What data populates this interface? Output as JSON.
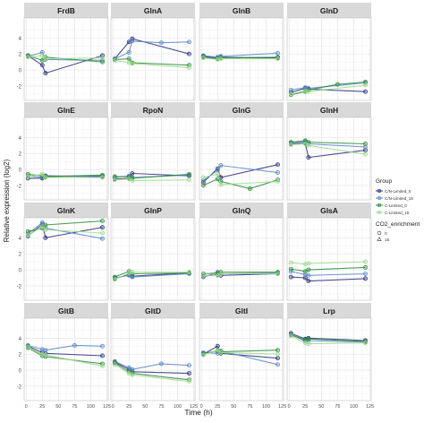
{
  "chart_data": {
    "type": "line",
    "xlabel": "Time (h)",
    "ylabel": "Relative expression (log2)",
    "x_ticks": [
      0,
      25,
      50,
      75,
      100,
      125
    ],
    "y_ticks": [
      -2,
      0,
      2,
      4
    ],
    "ylim": [
      -3.8,
      6.5
    ],
    "grid": true,
    "legend_position": "right",
    "legend": {
      "group_title": "Group",
      "groups": [
        {
          "name": "C/N-Limited_0",
          "color": "#2b2f7e"
        },
        {
          "name": "C/N-Limited_15",
          "color": "#5b86c5"
        },
        {
          "name": "C-Limited_0",
          "color": "#2e8b3d"
        },
        {
          "name": "C-Limited_15",
          "color": "#9bdc8a"
        }
      ],
      "shape_title": "CO2_enrichment",
      "shapes": [
        "0",
        "15"
      ]
    },
    "facets": [
      {
        "title": "FrdB",
        "series": [
          {
            "group": "C/N-Limited_0",
            "x": [
              3,
              25,
              30,
              118
            ],
            "y": [
              1.8,
              0.6,
              -0.4,
              1.8
            ]
          },
          {
            "group": "C/N-Limited_15",
            "x": [
              3,
              25,
              30,
              118
            ],
            "y": [
              1.7,
              2.2,
              1.3,
              1.2
            ]
          },
          {
            "group": "C-Limited_0",
            "x": [
              3,
              25,
              30,
              118
            ],
            "y": [
              1.8,
              1.2,
              1.6,
              1.0
            ]
          },
          {
            "group": "C-Limited_15",
            "x": [
              3,
              25,
              30,
              118
            ],
            "y": [
              1.6,
              1.8,
              1.4,
              1.5
            ]
          }
        ]
      },
      {
        "title": "GlnA",
        "series": [
          {
            "group": "C/N-Limited_0",
            "x": [
              3,
              25,
              30,
              118
            ],
            "y": [
              1.4,
              3.5,
              3.9,
              2.0
            ]
          },
          {
            "group": "C/N-Limited_15",
            "x": [
              3,
              25,
              30,
              75,
              118
            ],
            "y": [
              1.4,
              2.2,
              3.6,
              3.4,
              3.5
            ]
          },
          {
            "group": "C-Limited_0",
            "x": [
              3,
              25,
              30,
              118
            ],
            "y": [
              1.3,
              1.4,
              0.9,
              0.6
            ]
          },
          {
            "group": "C-Limited_15",
            "x": [
              3,
              25,
              30,
              118
            ],
            "y": [
              1.2,
              0.9,
              0.8,
              0.3
            ]
          }
        ]
      },
      {
        "title": "GlnB",
        "series": [
          {
            "group": "C/N-Limited_0",
            "x": [
              3,
              25,
              30,
              118
            ],
            "y": [
              1.7,
              1.5,
              1.6,
              1.5
            ]
          },
          {
            "group": "C/N-Limited_15",
            "x": [
              3,
              25,
              30,
              118
            ],
            "y": [
              1.8,
              1.6,
              1.7,
              2.1
            ]
          },
          {
            "group": "C-Limited_0",
            "x": [
              3,
              25,
              30,
              118
            ],
            "y": [
              1.6,
              1.4,
              1.5,
              1.6
            ]
          },
          {
            "group": "C-Limited_15",
            "x": [
              3,
              25,
              30,
              118
            ],
            "y": [
              1.5,
              1.3,
              1.4,
              1.4
            ]
          }
        ]
      },
      {
        "title": "GlnD",
        "series": [
          {
            "group": "C/N-Limited_0",
            "x": [
              3,
              25,
              30,
              118
            ],
            "y": [
              -2.8,
              -2.3,
              -2.4,
              -2.7
            ]
          },
          {
            "group": "C/N-Limited_15",
            "x": [
              3,
              25,
              30,
              118
            ],
            "y": [
              -2.5,
              -2.2,
              -2.3,
              -1.6
            ]
          },
          {
            "group": "C-Limited_0",
            "x": [
              3,
              25,
              30,
              75,
              118
            ],
            "y": [
              -3.1,
              -2.7,
              -2.5,
              -1.8,
              -1.5
            ]
          },
          {
            "group": "C-Limited_15",
            "x": [
              3,
              25,
              30,
              118
            ],
            "y": [
              -3.0,
              -2.6,
              -2.7,
              -1.9
            ]
          }
        ]
      },
      {
        "title": "GlnE",
        "series": [
          {
            "group": "C/N-Limited_0",
            "x": [
              3,
              25,
              30,
              118
            ],
            "y": [
              -1.1,
              -1.1,
              -0.8,
              -0.9
            ]
          },
          {
            "group": "C/N-Limited_15",
            "x": [
              3,
              25,
              30,
              118
            ],
            "y": [
              -0.8,
              -1.0,
              -0.9,
              -0.8
            ]
          },
          {
            "group": "C-Limited_0",
            "x": [
              3,
              25,
              30,
              118
            ],
            "y": [
              -0.6,
              -0.8,
              -0.9,
              -0.7
            ]
          },
          {
            "group": "C-Limited_15",
            "x": [
              3,
              25,
              30,
              118
            ],
            "y": [
              -0.9,
              -0.6,
              -1.0,
              -1.0
            ]
          }
        ]
      },
      {
        "title": "RpoN",
        "series": [
          {
            "group": "C/N-Limited_0",
            "x": [
              3,
              25,
              30,
              118
            ],
            "y": [
              -1.2,
              -1.1,
              -0.5,
              -0.8
            ]
          },
          {
            "group": "C/N-Limited_15",
            "x": [
              3,
              25,
              30,
              118
            ],
            "y": [
              -1.0,
              -0.8,
              -1.0,
              -0.7
            ]
          },
          {
            "group": "C-Limited_0",
            "x": [
              3,
              25,
              30,
              118
            ],
            "y": [
              -0.9,
              -0.9,
              -1.1,
              -0.6
            ]
          },
          {
            "group": "C-Limited_15",
            "x": [
              3,
              25,
              30,
              118
            ],
            "y": [
              -1.3,
              -1.2,
              -1.4,
              -1.3
            ]
          }
        ]
      },
      {
        "title": "GlnG",
        "series": [
          {
            "group": "C/N-Limited_0",
            "x": [
              3,
              25,
              30,
              118
            ],
            "y": [
              -1.6,
              0.1,
              -1.0,
              0.6
            ]
          },
          {
            "group": "C/N-Limited_15",
            "x": [
              3,
              25,
              30,
              118
            ],
            "y": [
              -1.4,
              -0.1,
              0.5,
              -0.4
            ]
          },
          {
            "group": "C-Limited_0",
            "x": [
              3,
              25,
              30,
              75,
              118
            ],
            "y": [
              -2.0,
              -1.2,
              -1.5,
              -2.4,
              -1.3
            ]
          },
          {
            "group": "C-Limited_15",
            "x": [
              3,
              25,
              30,
              118
            ],
            "y": [
              -1.0,
              -0.6,
              -1.9,
              -1.5
            ]
          }
        ]
      },
      {
        "title": "GlnH",
        "series": [
          {
            "group": "C/N-Limited_0",
            "x": [
              3,
              25,
              30,
              118
            ],
            "y": [
              3.2,
              3.3,
              1.5,
              2.4
            ]
          },
          {
            "group": "C/N-Limited_15",
            "x": [
              3,
              25,
              30,
              118
            ],
            "y": [
              3.3,
              3.5,
              3.2,
              2.8
            ]
          },
          {
            "group": "C-Limited_0",
            "x": [
              3,
              25,
              30,
              118
            ],
            "y": [
              3.4,
              3.6,
              3.4,
              3.2
            ]
          },
          {
            "group": "C-Limited_15",
            "x": [
              3,
              25,
              30,
              118
            ],
            "y": [
              3.1,
              3.2,
              3.0,
              1.9
            ]
          }
        ]
      },
      {
        "title": "GlnK",
        "series": [
          {
            "group": "C/N-Limited_0",
            "x": [
              3,
              25,
              30,
              118
            ],
            "y": [
              4.2,
              5.7,
              4.0,
              5.3
            ]
          },
          {
            "group": "C/N-Limited_15",
            "x": [
              3,
              25,
              30,
              118
            ],
            "y": [
              4.5,
              5.9,
              5.2,
              3.9
            ]
          },
          {
            "group": "C-Limited_0",
            "x": [
              3,
              25,
              30,
              118
            ],
            "y": [
              4.8,
              5.2,
              5.6,
              6.1
            ]
          },
          {
            "group": "C-Limited_15",
            "x": [
              3,
              25,
              30,
              118
            ],
            "y": [
              4.3,
              5.4,
              5.0,
              4.6
            ]
          }
        ]
      },
      {
        "title": "GlnP",
        "series": [
          {
            "group": "C/N-Limited_0",
            "x": [
              3,
              25,
              30,
              118
            ],
            "y": [
              -1.1,
              -0.6,
              -0.8,
              -0.4
            ]
          },
          {
            "group": "C/N-Limited_15",
            "x": [
              3,
              25,
              30,
              118
            ],
            "y": [
              -1.0,
              -0.7,
              -0.9,
              -0.5
            ]
          },
          {
            "group": "C-Limited_0",
            "x": [
              3,
              25,
              30,
              118
            ],
            "y": [
              -0.9,
              -0.2,
              -0.5,
              -0.4
            ]
          },
          {
            "group": "C-Limited_15",
            "x": [
              3,
              25,
              30,
              118
            ],
            "y": [
              -1.2,
              -0.4,
              -0.3,
              -0.3
            ]
          }
        ]
      },
      {
        "title": "GlnQ",
        "series": [
          {
            "group": "C/N-Limited_0",
            "x": [
              3,
              25,
              30,
              118
            ],
            "y": [
              -0.8,
              -0.6,
              -0.7,
              -0.5
            ]
          },
          {
            "group": "C/N-Limited_15",
            "x": [
              3,
              25,
              30,
              118
            ],
            "y": [
              -0.9,
              -0.3,
              -0.5,
              -0.4
            ]
          },
          {
            "group": "C-Limited_0",
            "x": [
              3,
              25,
              30,
              118
            ],
            "y": [
              -0.5,
              -0.4,
              -0.3,
              -0.3
            ]
          },
          {
            "group": "C-Limited_15",
            "x": [
              3,
              25,
              30,
              118
            ],
            "y": [
              -0.7,
              -0.7,
              -0.5,
              -0.5
            ]
          }
        ]
      },
      {
        "title": "GlsA",
        "series": [
          {
            "group": "C/N-Limited_0",
            "x": [
              3,
              25,
              30,
              118
            ],
            "y": [
              -0.9,
              -1.0,
              -1.4,
              -1.1
            ]
          },
          {
            "group": "C/N-Limited_15",
            "x": [
              3,
              25,
              30,
              118
            ],
            "y": [
              -0.2,
              -0.6,
              -0.7,
              -0.5
            ]
          },
          {
            "group": "C-Limited_0",
            "x": [
              3,
              25,
              30,
              118
            ],
            "y": [
              0.1,
              -0.2,
              0.0,
              0.3
            ]
          },
          {
            "group": "C-Limited_15",
            "x": [
              3,
              25,
              30,
              118
            ],
            "y": [
              0.9,
              0.7,
              0.8,
              1.0
            ]
          }
        ]
      },
      {
        "title": "GltB",
        "series": [
          {
            "group": "C/N-Limited_0",
            "x": [
              3,
              25,
              30,
              118
            ],
            "y": [
              3.0,
              2.2,
              2.1,
              1.8
            ]
          },
          {
            "group": "C/N-Limited_15",
            "x": [
              3,
              25,
              30,
              75,
              118
            ],
            "y": [
              3.1,
              2.6,
              2.5,
              3.1,
              3.0
            ]
          },
          {
            "group": "C-Limited_0",
            "x": [
              3,
              25,
              30,
              118
            ],
            "y": [
              2.8,
              1.8,
              1.7,
              0.8
            ]
          },
          {
            "group": "C-Limited_15",
            "x": [
              3,
              25,
              30,
              118
            ],
            "y": [
              2.9,
              2.0,
              1.9,
              0.5
            ]
          }
        ]
      },
      {
        "title": "GltD",
        "series": [
          {
            "group": "C/N-Limited_0",
            "x": [
              3,
              25,
              30,
              118
            ],
            "y": [
              1.0,
              0.1,
              -0.2,
              -0.4
            ]
          },
          {
            "group": "C/N-Limited_15",
            "x": [
              3,
              25,
              30,
              75,
              118
            ],
            "y": [
              1.1,
              0.3,
              0.1,
              0.8,
              0.6
            ]
          },
          {
            "group": "C-Limited_0",
            "x": [
              3,
              25,
              30,
              118
            ],
            "y": [
              0.9,
              -0.2,
              -0.4,
              -1.2
            ]
          },
          {
            "group": "C-Limited_15",
            "x": [
              3,
              25,
              30,
              118
            ],
            "y": [
              0.7,
              -0.4,
              -0.6,
              -1.4
            ]
          }
        ]
      },
      {
        "title": "GltI",
        "series": [
          {
            "group": "C/N-Limited_0",
            "x": [
              3,
              25,
              30,
              118
            ],
            "y": [
              2.0,
              3.0,
              2.1,
              1.5
            ]
          },
          {
            "group": "C/N-Limited_15",
            "x": [
              3,
              25,
              30,
              118
            ],
            "y": [
              2.2,
              2.1,
              2.4,
              0.7
            ]
          },
          {
            "group": "C-Limited_0",
            "x": [
              3,
              25,
              30,
              118
            ],
            "y": [
              2.1,
              2.4,
              2.3,
              2.5
            ]
          },
          {
            "group": "C-Limited_15",
            "x": [
              3,
              25,
              30,
              118
            ],
            "y": [
              1.9,
              2.5,
              2.2,
              2.0
            ]
          }
        ]
      },
      {
        "title": "Lrp",
        "series": [
          {
            "group": "C/N-Limited_0",
            "x": [
              3,
              25,
              30,
              118
            ],
            "y": [
              4.6,
              3.9,
              4.0,
              3.7
            ]
          },
          {
            "group": "C/N-Limited_15",
            "x": [
              3,
              25,
              30,
              118
            ],
            "y": [
              4.5,
              3.6,
              3.7,
              3.5
            ]
          },
          {
            "group": "C-Limited_0",
            "x": [
              3,
              25,
              30,
              118
            ],
            "y": [
              4.4,
              3.8,
              3.9,
              3.6
            ]
          },
          {
            "group": "C-Limited_15",
            "x": [
              3,
              25,
              30,
              118
            ],
            "y": [
              4.3,
              3.4,
              3.3,
              3.4
            ]
          }
        ]
      }
    ]
  }
}
